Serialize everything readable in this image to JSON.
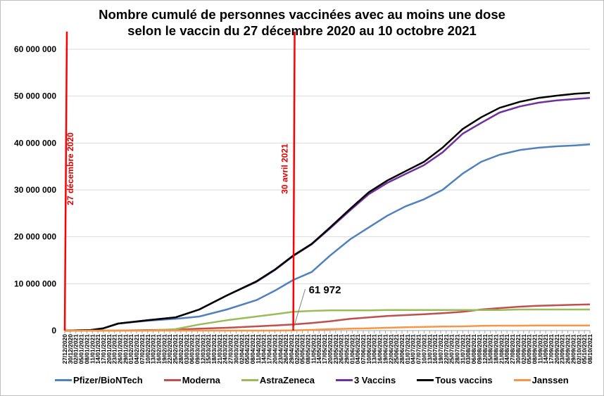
{
  "chart_data": {
    "type": "line",
    "title": [
      "Nombre cumulé de personnes vaccinées avec au moins une dose",
      "selon le vaccin du 27 décembre 2020 au 10 octobre 2021"
    ],
    "xlabel": "",
    "ylabel": "",
    "ylim": [
      0,
      60000000
    ],
    "yticks": [
      0,
      10000000,
      20000000,
      30000000,
      40000000,
      50000000,
      60000000
    ],
    "ytick_labels": [
      "0",
      "10 000 000",
      "20 000 000",
      "30 000 000",
      "40 000 000",
      "50 000 000",
      "60 000 000"
    ],
    "grid": true,
    "legend_placement": "bottom",
    "xtick_labels": [
      "27/12/2020",
      "30/12/2020",
      "02/01/2021",
      "05/01/2021",
      "08/01/2021",
      "11/01/2021",
      "14/01/2021",
      "17/01/2021",
      "20/01/2021",
      "23/01/2021",
      "26/01/2021",
      "29/01/2021",
      "01/02/2021",
      "04/02/2021",
      "07/02/2021",
      "10/02/2021",
      "13/02/2021",
      "16/02/2021",
      "19/02/2021",
      "22/02/2021",
      "25/02/2021",
      "28/02/2021",
      "03/03/2021",
      "06/03/2021",
      "09/03/2021",
      "12/03/2021",
      "15/03/2021",
      "18/03/2021",
      "21/03/2021",
      "24/03/2021",
      "27/03/2021",
      "30/03/2021",
      "02/04/2021",
      "05/04/2021",
      "08/04/2021",
      "11/04/2021",
      "14/04/2021",
      "17/04/2021",
      "20/04/2021",
      "23/04/2021",
      "26/04/2021",
      "29/04/2021",
      "02/05/2021",
      "05/05/2021",
      "08/05/2021",
      "11/05/2021",
      "14/05/2021",
      "17/05/2021",
      "20/05/2021",
      "23/05/2021",
      "26/05/2021",
      "29/05/2021",
      "01/06/2021",
      "04/06/2021",
      "07/06/2021",
      "10/06/2021",
      "13/06/2021",
      "16/06/2021",
      "19/06/2021",
      "22/06/2021",
      "25/06/2021",
      "28/06/2021",
      "01/07/2021",
      "04/07/2021",
      "07/07/2021",
      "10/07/2021",
      "13/07/2021",
      "16/07/2021",
      "19/07/2021",
      "22/07/2021",
      "25/07/2021",
      "28/07/2021",
      "31/07/2021",
      "03/08/2021",
      "06/08/2021",
      "09/08/2021",
      "12/08/2021",
      "15/08/2021",
      "18/08/2021",
      "21/08/2021",
      "24/08/2021",
      "27/08/2021",
      "30/08/2021",
      "02/09/2021",
      "05/09/2021",
      "08/09/2021",
      "11/09/2021",
      "14/09/2021",
      "17/09/2021",
      "20/09/2021",
      "23/09/2021",
      "26/09/2021",
      "29/09/2021",
      "02/10/2021",
      "05/10/2021",
      "08/10/2021"
    ],
    "x": [
      "27/12/2020",
      "10/01/2021",
      "17/01/2021",
      "25/01/2021",
      "10/02/2021",
      "25/02/2021",
      "10/03/2021",
      "25/03/2021",
      "10/04/2021",
      "20/04/2021",
      "30/04/2021",
      "10/05/2021",
      "20/05/2021",
      "31/05/2021",
      "10/06/2021",
      "20/06/2021",
      "30/06/2021",
      "10/07/2021",
      "20/07/2021",
      "31/07/2021",
      "10/08/2021",
      "20/08/2021",
      "31/08/2021",
      "10/09/2021",
      "20/09/2021",
      "30/09/2021",
      "08/10/2021"
    ],
    "series": [
      {
        "name": "Pfizer/BioNTech",
        "color": "#4f81bd",
        "values": [
          0,
          100000,
          500000,
          1500000,
          2100000,
          2500000,
          3000000,
          4500000,
          6500000,
          8500000,
          10800000,
          12500000,
          16000000,
          19500000,
          22000000,
          24500000,
          26500000,
          28000000,
          30000000,
          33500000,
          36000000,
          37500000,
          38500000,
          39000000,
          39300000,
          39500000,
          39700000
        ]
      },
      {
        "name": "Moderna",
        "color": "#c0504d",
        "values": [
          0,
          0,
          0,
          0,
          100000,
          200000,
          400000,
          600000,
          900000,
          1100000,
          1300000,
          1600000,
          2000000,
          2500000,
          2800000,
          3100000,
          3300000,
          3500000,
          3700000,
          4000000,
          4500000,
          4800000,
          5100000,
          5300000,
          5400000,
          5500000,
          5600000
        ]
      },
      {
        "name": "AstraZeneca",
        "color": "#9bbb59",
        "values": [
          0,
          0,
          0,
          0,
          0,
          300000,
          1300000,
          2200000,
          3000000,
          3500000,
          4000000,
          4200000,
          4300000,
          4300000,
          4300000,
          4400000,
          4400000,
          4400000,
          4400000,
          4400000,
          4400000,
          4400000,
          4500000,
          4500000,
          4500000,
          4500000,
          4500000
        ]
      },
      {
        "name": "3 Vaccins",
        "color": "#7030a0",
        "values": [
          0,
          100000,
          500000,
          1500000,
          2200000,
          2800000,
          4500000,
          7500000,
          10400000,
          12900000,
          15900000,
          18400000,
          21800000,
          25700000,
          29100000,
          31500000,
          33400000,
          35300000,
          38000000,
          42000000,
          44300000,
          46500000,
          47800000,
          48600000,
          49100000,
          49400000,
          49600000
        ]
      },
      {
        "name": "Tous vaccins",
        "color": "#000000",
        "values": [
          0,
          100000,
          500000,
          1500000,
          2200000,
          2800000,
          4500000,
          7500000,
          10500000,
          13000000,
          16000000,
          18500000,
          22000000,
          26000000,
          29500000,
          32000000,
          34000000,
          36000000,
          39000000,
          43000000,
          45500000,
          47500000,
          48800000,
          49600000,
          50100000,
          50500000,
          50700000
        ]
      },
      {
        "name": "Janssen",
        "color": "#f79646",
        "values": [
          0,
          0,
          0,
          0,
          0,
          0,
          0,
          0,
          0,
          0,
          60000,
          150000,
          300000,
          400000,
          500000,
          600000,
          700000,
          800000,
          850000,
          900000,
          1000000,
          1050000,
          1050000,
          1100000,
          1100000,
          1100000,
          1100000
        ]
      }
    ],
    "markers": [
      {
        "date": "27/12/2020",
        "label": "27 décembre 2020",
        "color": "#ff0000"
      },
      {
        "date": "30/04/2021",
        "label": "30 avril 2021",
        "color": "#ff0000"
      }
    ],
    "annotations": [
      {
        "text": "61 972",
        "date": "30/04/2021",
        "value": 61972,
        "series": "Janssen"
      }
    ]
  }
}
